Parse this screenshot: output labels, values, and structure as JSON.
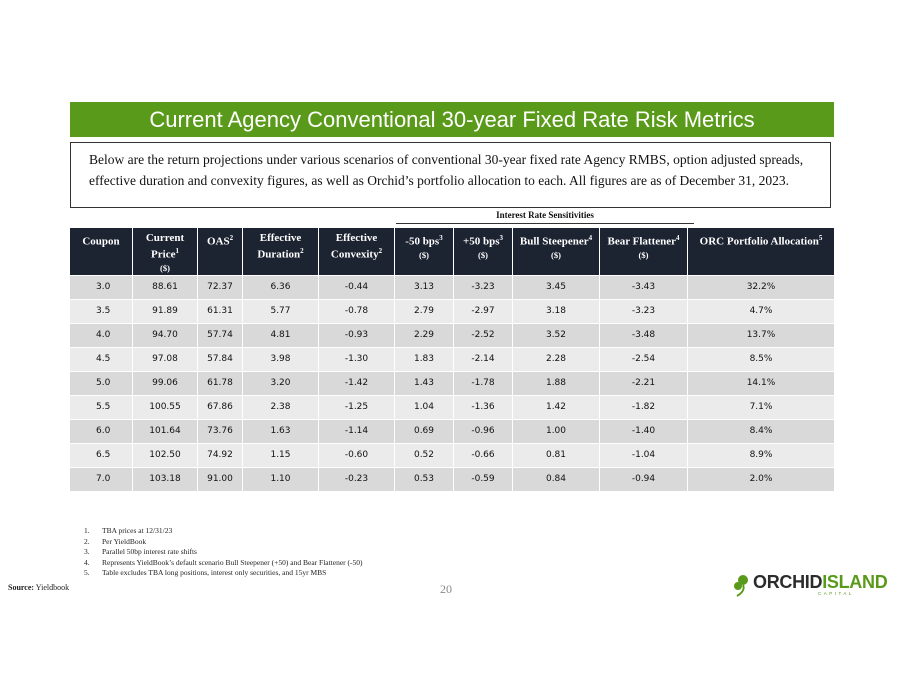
{
  "title": "Current Agency Conventional 30-year Fixed Rate Risk Metrics",
  "intro": "Below are the return projections under various scenarios of conventional 30-year fixed rate Agency RMBS, option adjusted spreads, effective duration and convexity figures, as well as Orchid’s portfolio allocation to each.  All figures are as of December 31, 2023.",
  "group_label": "Interest Rate Sensitivities",
  "headers": [
    {
      "text": "Coupon",
      "sup": "",
      "sub": ""
    },
    {
      "text": "Current Price",
      "sup": "1",
      "sub": "($)"
    },
    {
      "text": "OAS",
      "sup": "2",
      "sub": ""
    },
    {
      "text": "Effective Duration",
      "sup": "2",
      "sub": ""
    },
    {
      "text": "Effective Convexity",
      "sup": "2",
      "sub": ""
    },
    {
      "text": "-50 bps",
      "sup": "3",
      "sub": "($)"
    },
    {
      "text": "+50 bps",
      "sup": "3",
      "sub": "($)"
    },
    {
      "text": "Bull Steepener",
      "sup": "4",
      "sub": "($)"
    },
    {
      "text": "Bear Flattener",
      "sup": "4",
      "sub": "($)"
    },
    {
      "text": "ORC Portfolio Allocation",
      "sup": "5",
      "sub": ""
    }
  ],
  "rows": [
    [
      "3.0",
      "88.61",
      "72.37",
      "6.36",
      "-0.44",
      "3.13",
      "-3.23",
      "3.45",
      "-3.43",
      "32.2%"
    ],
    [
      "3.5",
      "91.89",
      "61.31",
      "5.77",
      "-0.78",
      "2.79",
      "-2.97",
      "3.18",
      "-3.23",
      "4.7%"
    ],
    [
      "4.0",
      "94.70",
      "57.74",
      "4.81",
      "-0.93",
      "2.29",
      "-2.52",
      "3.52",
      "-3.48",
      "13.7%"
    ],
    [
      "4.5",
      "97.08",
      "57.84",
      "3.98",
      "-1.30",
      "1.83",
      "-2.14",
      "2.28",
      "-2.54",
      "8.5%"
    ],
    [
      "5.0",
      "99.06",
      "61.78",
      "3.20",
      "-1.42",
      "1.43",
      "-1.78",
      "1.88",
      "-2.21",
      "14.1%"
    ],
    [
      "5.5",
      "100.55",
      "67.86",
      "2.38",
      "-1.25",
      "1.04",
      "-1.36",
      "1.42",
      "-1.82",
      "7.1%"
    ],
    [
      "6.0",
      "101.64",
      "73.76",
      "1.63",
      "-1.14",
      "0.69",
      "-0.96",
      "1.00",
      "-1.40",
      "8.4%"
    ],
    [
      "6.5",
      "102.50",
      "74.92",
      "1.15",
      "-0.60",
      "0.52",
      "-0.66",
      "0.81",
      "-1.04",
      "8.9%"
    ],
    [
      "7.0",
      "103.18",
      "91.00",
      "1.10",
      "-0.23",
      "0.53",
      "-0.59",
      "0.84",
      "-0.94",
      "2.0%"
    ]
  ],
  "footnotes": [
    {
      "num": "1.",
      "text": "TBA prices at 12/31/23"
    },
    {
      "num": "2.",
      "text": "Per YieldBook"
    },
    {
      "num": "3.",
      "text": "Parallel 50bp interest rate shifts"
    },
    {
      "num": "4.",
      "text": "Represents YieldBook’s default scenario Bull Steepener (+50) and Bear Flattener (-50)"
    },
    {
      "num": "5.",
      "text": "Table excludes TBA long positions, interest only securities, and 15yr MBS"
    }
  ],
  "source_label": "Source:",
  "source_value": "Yieldbook",
  "page_number": "20",
  "logo": {
    "word1": "ORCHID",
    "word2": "ISLAND",
    "sub": "CAPITAL",
    "color_green": "#5a9a1a",
    "color_dark": "#2c2c2c"
  },
  "colors": {
    "title_bar": "#5a9a1a",
    "header_bg": "#1c2331",
    "row_odd": "#d9d9d9",
    "row_even": "#ebebeb"
  }
}
